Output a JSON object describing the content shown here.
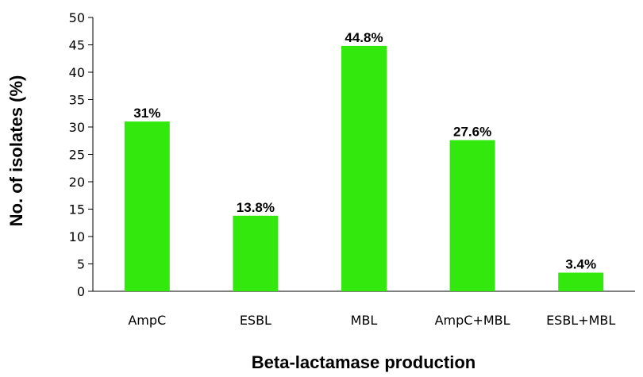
{
  "chart_data": {
    "type": "bar",
    "categories": [
      "AmpC",
      "ESBL",
      "MBL",
      "AmpC+MBL",
      "ESBL+MBL"
    ],
    "values": [
      31,
      13.8,
      44.8,
      27.6,
      3.4
    ],
    "data_labels": [
      "31%",
      "13.8%",
      "44.8%",
      "27.6%",
      "3.4%"
    ],
    "title": "",
    "xlabel": "Beta-lactamase production",
    "ylabel": "No. of isolates (%)",
    "ylim": [
      0,
      50
    ],
    "yticks": [
      0,
      5,
      10,
      15,
      20,
      25,
      30,
      35,
      40,
      45,
      50
    ],
    "grid": false,
    "legend": "none",
    "bar_color": "#33e80c"
  }
}
